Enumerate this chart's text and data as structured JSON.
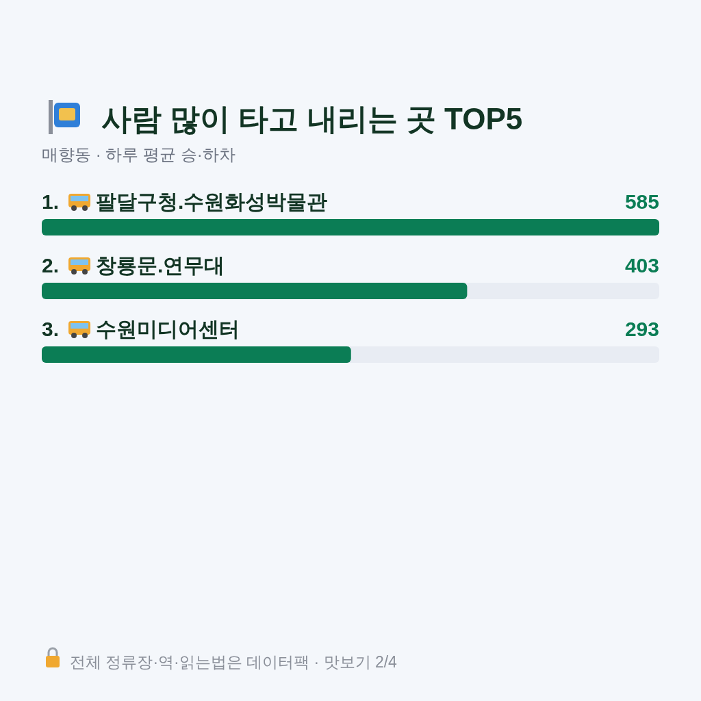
{
  "chart_data": {
    "type": "bar",
    "orientation": "horizontal",
    "title": "사람 많이 타고 내리는 곳 TOP5",
    "subtitle": "매향동 · 하루 평균 승·하차",
    "categories": [
      "1. 팔달구청.수원화성박물관",
      "2. 창룡문.연무대",
      "3. 수원미디어센터"
    ],
    "values": [
      585,
      403,
      293
    ],
    "color": "#0b7d55",
    "xlim": [
      0,
      585
    ],
    "data_labels": true,
    "annotations": [
      "전체 정류장·역·읽는법은 데이터팩 · 맛보기 2/4"
    ]
  }
}
